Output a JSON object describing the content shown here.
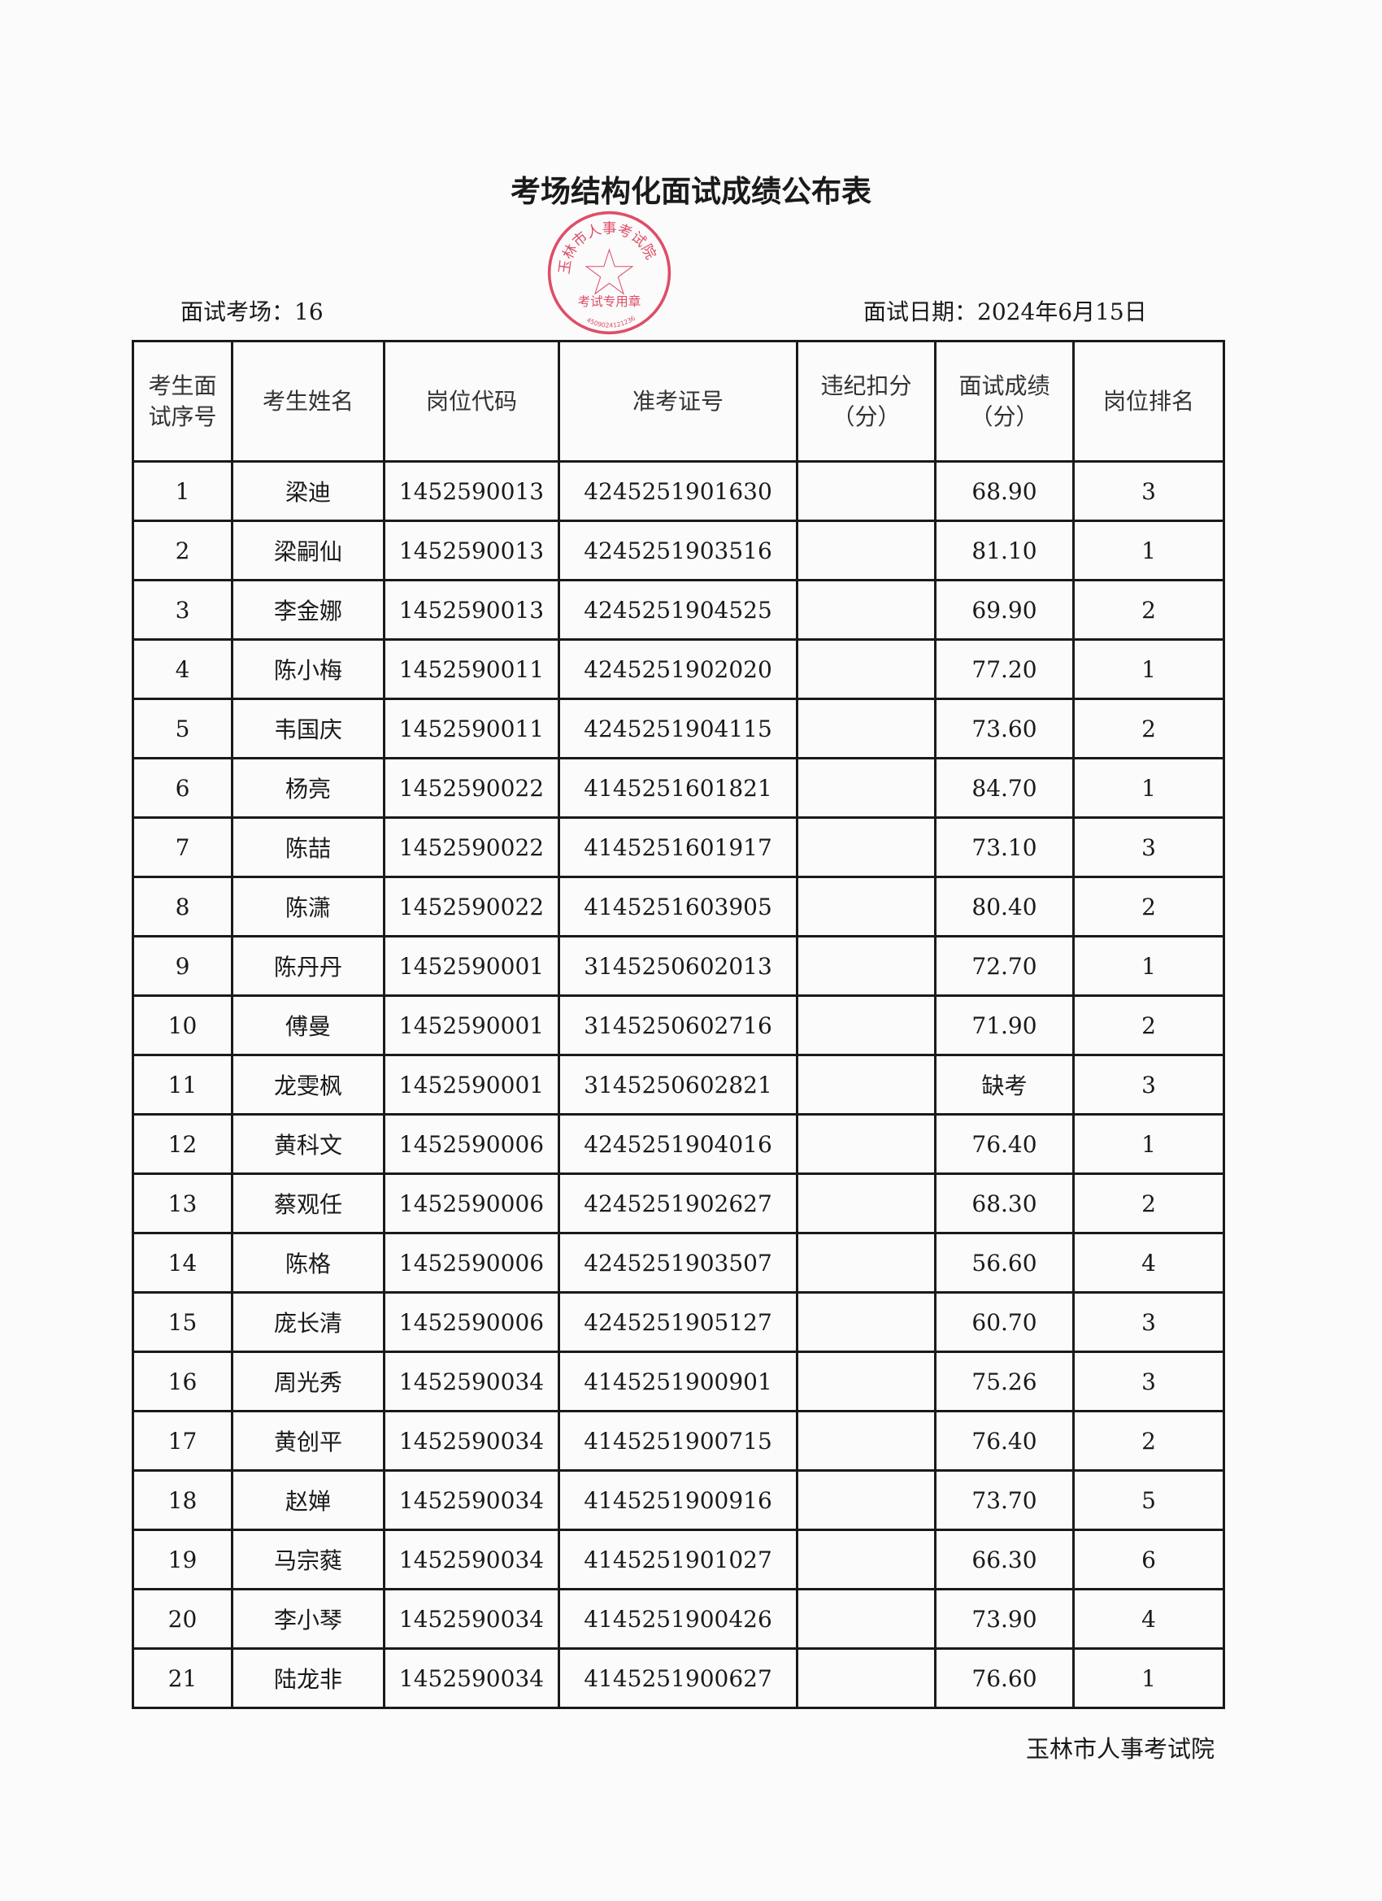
{
  "title": "考场结构化面试成绩公布表",
  "info": {
    "room_label": "面试考场：16",
    "date_label": "面试日期：2024年6月15日"
  },
  "table": {
    "headers": [
      "考生面试序号",
      "考生姓名",
      "岗位代码",
      "准考证号",
      "违纪扣分（分）",
      "面试成绩（分）",
      "岗位排名"
    ],
    "rows": [
      [
        "1",
        "梁迪",
        "1452590013",
        "4245251901630",
        "",
        "68.90",
        "3"
      ],
      [
        "2",
        "梁嗣仙",
        "1452590013",
        "4245251903516",
        "",
        "81.10",
        "1"
      ],
      [
        "3",
        "李金娜",
        "1452590013",
        "4245251904525",
        "",
        "69.90",
        "2"
      ],
      [
        "4",
        "陈小梅",
        "1452590011",
        "4245251902020",
        "",
        "77.20",
        "1"
      ],
      [
        "5",
        "韦国庆",
        "1452590011",
        "4245251904115",
        "",
        "73.60",
        "2"
      ],
      [
        "6",
        "杨亮",
        "1452590022",
        "4145251601821",
        "",
        "84.70",
        "1"
      ],
      [
        "7",
        "陈喆",
        "1452590022",
        "4145251601917",
        "",
        "73.10",
        "3"
      ],
      [
        "8",
        "陈潇",
        "1452590022",
        "4145251603905",
        "",
        "80.40",
        "2"
      ],
      [
        "9",
        "陈丹丹",
        "1452590001",
        "3145250602013",
        "",
        "72.70",
        "1"
      ],
      [
        "10",
        "傅曼",
        "1452590001",
        "3145250602716",
        "",
        "71.90",
        "2"
      ],
      [
        "11",
        "龙雯枫",
        "1452590001",
        "3145250602821",
        "",
        "缺考",
        "3"
      ],
      [
        "12",
        "黄科文",
        "1452590006",
        "4245251904016",
        "",
        "76.40",
        "1"
      ],
      [
        "13",
        "蔡观任",
        "1452590006",
        "4245251902627",
        "",
        "68.30",
        "2"
      ],
      [
        "14",
        "陈格",
        "1452590006",
        "4245251903507",
        "",
        "56.60",
        "4"
      ],
      [
        "15",
        "庞长清",
        "1452590006",
        "4245251905127",
        "",
        "60.70",
        "3"
      ],
      [
        "16",
        "周光秀",
        "1452590034",
        "4145251900901",
        "",
        "75.26",
        "3"
      ],
      [
        "17",
        "黄创平",
        "1452590034",
        "4145251900715",
        "",
        "76.40",
        "2"
      ],
      [
        "18",
        "赵婵",
        "1452590034",
        "4145251900916",
        "",
        "73.70",
        "5"
      ],
      [
        "19",
        "马宗蕤",
        "1452590034",
        "4145251901027",
        "",
        "66.30",
        "6"
      ],
      [
        "20",
        "李小琴",
        "1452590034",
        "4145251900426",
        "",
        "73.90",
        "4"
      ],
      [
        "21",
        "陆龙非",
        "1452590034",
        "4145251900627",
        "",
        "76.60",
        "1"
      ]
    ]
  },
  "stamp": {
    "text": "玉林市人事考试院",
    "subtext": "考试专用章",
    "code": "4509024121236",
    "color": "#d9304f"
  },
  "footer": "玉林市人事考试院"
}
